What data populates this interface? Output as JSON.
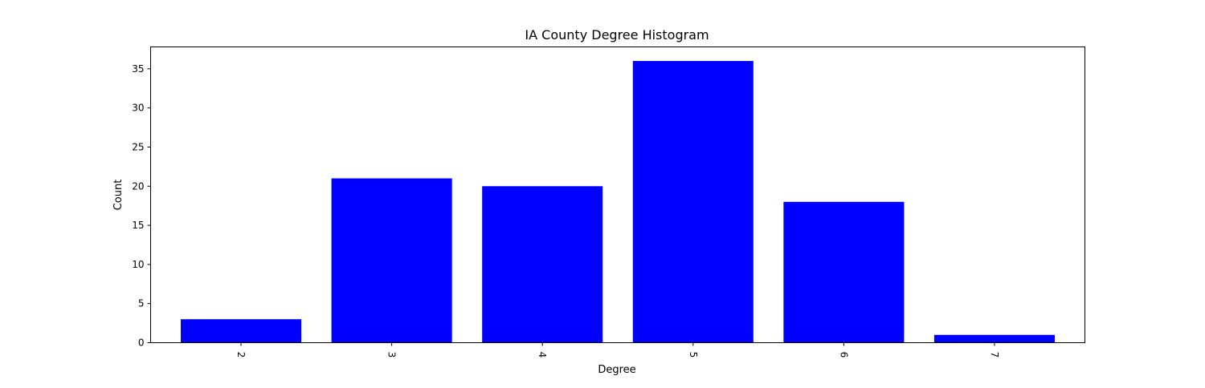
{
  "chart_data": {
    "type": "bar",
    "title": "IA County Degree Histogram",
    "xlabel": "Degree",
    "ylabel": "Count",
    "categories": [
      "2",
      "3",
      "4",
      "5",
      "6",
      "7"
    ],
    "values": [
      3,
      21,
      20,
      36,
      18,
      1
    ],
    "ylim": [
      0,
      37.8
    ],
    "yticks": [
      0,
      5,
      10,
      15,
      20,
      25,
      30,
      35
    ],
    "xtick_rotation_deg": 90,
    "bar_color": "#0000ff",
    "grid": false,
    "legend": "none"
  }
}
